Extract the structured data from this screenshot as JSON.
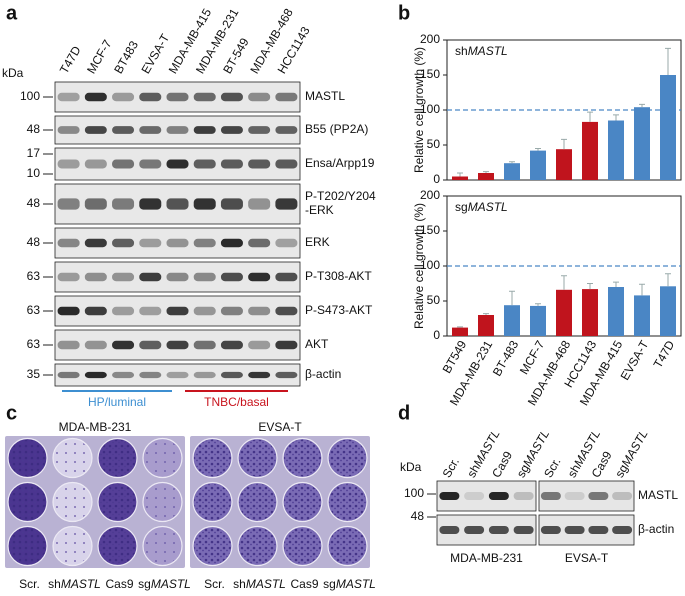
{
  "panels": {
    "a": {
      "letter": "a",
      "kda": "kDa",
      "lanes": [
        "T47D",
        "MCF-7",
        "BT483",
        "EVSA-T",
        "MDA-MB-415",
        "MDA-MB-231",
        "BT-549",
        "MDA-MB-468",
        "HCC1143"
      ],
      "rows": [
        {
          "markers": [
            "100"
          ],
          "label": [
            "MASTL"
          ]
        },
        {
          "markers": [
            "48"
          ],
          "label": [
            "B55 (PP2A)"
          ]
        },
        {
          "markers": [
            "17",
            "10"
          ],
          "label": [
            "Ensa/Arpp19"
          ]
        },
        {
          "markers": [
            "48"
          ],
          "label": [
            "P-T202/Y204",
            "-ERK"
          ]
        },
        {
          "markers": [
            "48"
          ],
          "label": [
            "ERK"
          ]
        },
        {
          "markers": [
            "63"
          ],
          "label": [
            "P-T308-AKT"
          ]
        },
        {
          "markers": [
            "63"
          ],
          "label": [
            "P-S473-AKT"
          ]
        },
        {
          "markers": [
            "63"
          ],
          "label": [
            "AKT"
          ]
        },
        {
          "markers": [
            "35"
          ],
          "label": [
            "β-actin"
          ]
        }
      ],
      "groups": [
        {
          "label": "HP/luminal",
          "color": "#3d8fd1"
        },
        {
          "label": "TNBC/basal",
          "color": "#c8141e"
        }
      ]
    },
    "b": {
      "letter": "b"
    },
    "c": {
      "letter": "c",
      "plates": [
        "MDA-MB-231",
        "EVSA-T"
      ],
      "conditions": [
        {
          "text": "Scr."
        },
        {
          "prefix": "sh",
          "gene": "MASTL"
        },
        {
          "text": "Cas9"
        },
        {
          "prefix": "sg",
          "gene": "MASTL"
        }
      ]
    },
    "d": {
      "letter": "d",
      "kda": "kDa",
      "markers": [
        "100",
        "48"
      ],
      "rows": [
        "MASTL",
        "β-actin"
      ],
      "cell_lines": [
        "MDA-MB-231",
        "EVSA-T"
      ],
      "conditions": [
        {
          "text": "Scr."
        },
        {
          "prefix": "sh",
          "gene": "MASTL"
        },
        {
          "text": "Cas9"
        },
        {
          "prefix": "sg",
          "gene": "MASTL"
        }
      ]
    }
  },
  "chart_data": [
    {
      "type": "bar",
      "title": {
        "prefix": "sh",
        "gene": "MASTL"
      },
      "y_label": "Relative cell growth (%)",
      "values": [
        5,
        10,
        24,
        42,
        44,
        83,
        85,
        104,
        150
      ],
      "errors": [
        5,
        2,
        2,
        3,
        14,
        14,
        8,
        4,
        38
      ],
      "colors": [
        "#c0141d",
        "#c0141d",
        "#4a86c5",
        "#4a86c5",
        "#c0141d",
        "#c0141d",
        "#4a86c5",
        "#4a86c5",
        "#4a86c5"
      ],
      "ylim": [
        0,
        200
      ],
      "yticks": [
        0,
        50,
        100,
        150,
        200
      ],
      "reference_line": 100,
      "reference_color": "#4a86c5"
    },
    {
      "type": "bar",
      "title": {
        "prefix": "sg",
        "gene": "MASTL"
      },
      "y_label": "Relative cell growth (%)",
      "categories": [
        "BT549",
        "MDA-MB-231",
        "BT-483",
        "MCF-7",
        "MDA-MB-468",
        "HCC1143",
        "MDA-MB-415",
        "EVSA-T",
        "T47D"
      ],
      "values": [
        12,
        30,
        44,
        43,
        66,
        67,
        70,
        58,
        71
      ],
      "errors": [
        1,
        2,
        20,
        3,
        20,
        8,
        7,
        16,
        18
      ],
      "colors": [
        "#c0141d",
        "#c0141d",
        "#4a86c5",
        "#4a86c5",
        "#c0141d",
        "#c0141d",
        "#4a86c5",
        "#4a86c5",
        "#4a86c5"
      ],
      "ylim": [
        0,
        200
      ],
      "yticks": [
        0,
        50,
        100,
        150,
        200
      ],
      "reference_line": 100,
      "reference_color": "#4a86c5"
    }
  ]
}
